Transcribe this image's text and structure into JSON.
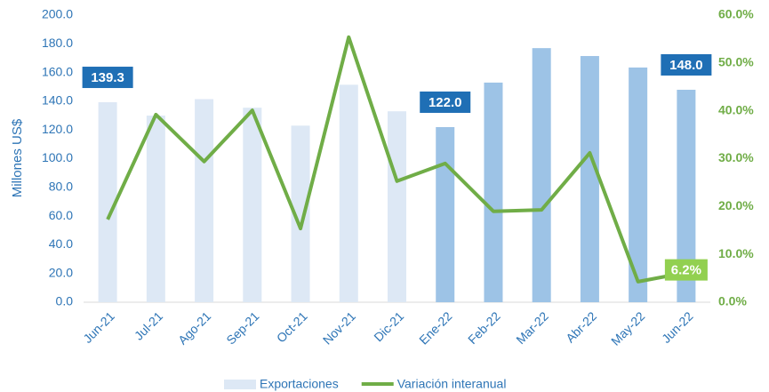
{
  "chart_data": {
    "type": "bar_line",
    "y_axis_label": "Millones US$",
    "categories": [
      "Jun-21",
      "Jul-21",
      "Ago-21",
      "Sep-21",
      "Oct-21",
      "Nov-21",
      "Dic-21",
      "Ene-22",
      "Feb-22",
      "Mar-22",
      "Abr-22",
      "May-22",
      "Jun-22"
    ],
    "series": [
      {
        "name": "Exportaciones",
        "type": "bar",
        "color": "#dde8f5",
        "bar_colors": [
          "#dde8f5",
          "#dde8f5",
          "#dde8f5",
          "#dde8f5",
          "#dde8f5",
          "#dde8f5",
          "#dde8f5",
          "#9dc3e6",
          "#9dc3e6",
          "#9dc3e6",
          "#9dc3e6",
          "#9dc3e6",
          "#9dc3e6"
        ],
        "values": [
          139.3,
          130,
          141.5,
          135.5,
          123,
          151.5,
          133,
          122.0,
          153,
          177,
          171.5,
          163.5,
          148.0
        ],
        "value_labels": [
          "139.3",
          null,
          null,
          null,
          null,
          null,
          null,
          "122.0",
          null,
          null,
          null,
          null,
          "148.0"
        ],
        "label_color": "#1f6fb5"
      },
      {
        "name": "Variación interanual",
        "type": "line",
        "axis": "y2",
        "color": "#70ad47",
        "values": [
          17.3,
          39.2,
          29.4,
          40.1,
          15.4,
          55.4,
          25.3,
          29.0,
          19.0,
          19.3,
          31.2,
          4.3,
          6.2
        ],
        "value_labels": [
          null,
          null,
          null,
          null,
          null,
          null,
          null,
          null,
          null,
          null,
          null,
          null,
          "6.2%"
        ],
        "label_color": "#92d050"
      }
    ],
    "ylim": [
      0,
      200
    ],
    "yticks": [
      {
        "value": 0,
        "label": "0.0"
      },
      {
        "value": 20,
        "label": "20.0"
      },
      {
        "value": 40,
        "label": "40.0"
      },
      {
        "value": 60,
        "label": "60.0"
      },
      {
        "value": 80,
        "label": "80.0"
      },
      {
        "value": 100,
        "label": "100.0"
      },
      {
        "value": 120,
        "label": "120.0"
      },
      {
        "value": 140,
        "label": "140.0"
      },
      {
        "value": 160,
        "label": "160.0"
      },
      {
        "value": 180,
        "label": "180.0"
      },
      {
        "value": 200,
        "label": "200.0"
      }
    ],
    "y2lim": [
      0,
      60
    ],
    "y2ticks": [
      {
        "value": 0,
        "label": "0.0%"
      },
      {
        "value": 10,
        "label": "10.0%"
      },
      {
        "value": 20,
        "label": "20.0%"
      },
      {
        "value": 30,
        "label": "30.0%"
      },
      {
        "value": 40,
        "label": "40.0%"
      },
      {
        "value": 50,
        "label": "50.0%"
      },
      {
        "value": 60,
        "label": "60.0%"
      }
    ],
    "grid": false,
    "legend": "bottom"
  }
}
